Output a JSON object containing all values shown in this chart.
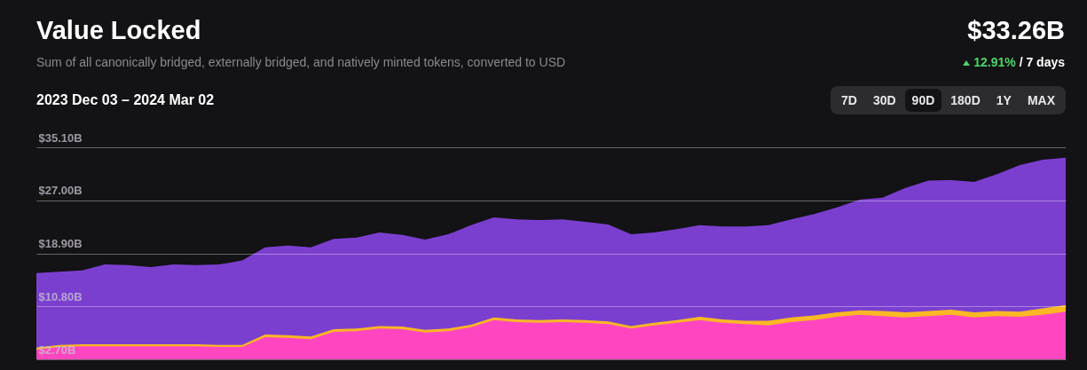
{
  "chart_data": {
    "type": "area",
    "title": "Value Locked",
    "subtitle": "Sum of all canonically bridged, externally bridged, and natively minted tokens, converted to USD",
    "annotations": [
      "$33.26B",
      "12.91%",
      "/ 7 days",
      "2023 Dec 03 – 2024 Mar 02",
      "7D",
      "30D",
      "90D",
      "180D",
      "1Y",
      "MAX"
    ],
    "grid": "y",
    "tick_labels": "y",
    "categories": [
      null,
      null,
      null,
      null,
      null,
      null,
      null,
      null,
      null,
      null,
      null,
      null,
      null,
      null,
      null,
      null,
      null,
      null,
      null,
      null,
      null,
      null,
      null,
      null,
      null,
      null,
      null,
      null,
      null,
      null,
      null,
      null,
      null,
      null,
      null,
      null,
      null,
      null,
      null,
      null,
      null,
      null,
      null,
      null,
      null,
      null
    ],
    "ylim": [
      2.7,
      35.1
    ],
    "yticks": [
      {
        "value": 2.7,
        "label": "$2.70B"
      },
      {
        "value": 10.8,
        "label": "$10.80B"
      },
      {
        "value": 18.9,
        "label": "$18.90B"
      },
      {
        "value": 27,
        "label": "$27.00B"
      },
      {
        "value": 35.1,
        "label": "$35.10B"
      }
    ],
    "series": [
      {
        "color": "#7b3fcf",
        "values": [
          15.9,
          16.1,
          16.3,
          17.2,
          17.1,
          16.8,
          17.2,
          17.1,
          17.2,
          17.8,
          19.8,
          20.1,
          19.8,
          21.1,
          21.3,
          22.1,
          21.7,
          21.0,
          21.8,
          23.2,
          24.4,
          24.1,
          24.0,
          24.1,
          23.7,
          23.3,
          21.8,
          22.1,
          22.6,
          23.2,
          23.0,
          23.0,
          23.2,
          24.1,
          24.9,
          25.9,
          27.1,
          27.4,
          28.9,
          30.0,
          30.1,
          29.8,
          31.0,
          32.4,
          33.2,
          33.5
        ]
      },
      {
        "color": "#fbb824",
        "values": [
          4.5,
          4.9,
          5.0,
          5.0,
          5.0,
          5.0,
          5.0,
          5.0,
          4.9,
          4.9,
          6.5,
          6.4,
          6.2,
          7.3,
          7.4,
          7.8,
          7.7,
          7.2,
          7.4,
          8.0,
          9.1,
          8.8,
          8.7,
          8.8,
          8.7,
          8.5,
          7.8,
          8.3,
          8.7,
          9.2,
          8.8,
          8.6,
          8.6,
          9.1,
          9.4,
          9.9,
          10.2,
          10.1,
          9.9,
          10.1,
          10.3,
          9.9,
          10.1,
          10.0,
          10.5,
          11.0
        ]
      },
      {
        "color": "#ff46c0",
        "values": [
          4.2,
          4.6,
          4.7,
          4.7,
          4.7,
          4.7,
          4.7,
          4.7,
          4.6,
          4.6,
          6.1,
          6.0,
          5.8,
          6.9,
          7.0,
          7.4,
          7.3,
          6.8,
          7.0,
          7.6,
          8.7,
          8.4,
          8.3,
          8.4,
          8.3,
          8.1,
          7.4,
          7.9,
          8.3,
          8.7,
          8.3,
          8.1,
          7.9,
          8.4,
          8.7,
          9.2,
          9.5,
          9.3,
          9.1,
          9.3,
          9.5,
          9.1,
          9.3,
          9.2,
          9.5,
          10.0
        ]
      }
    ]
  }
}
